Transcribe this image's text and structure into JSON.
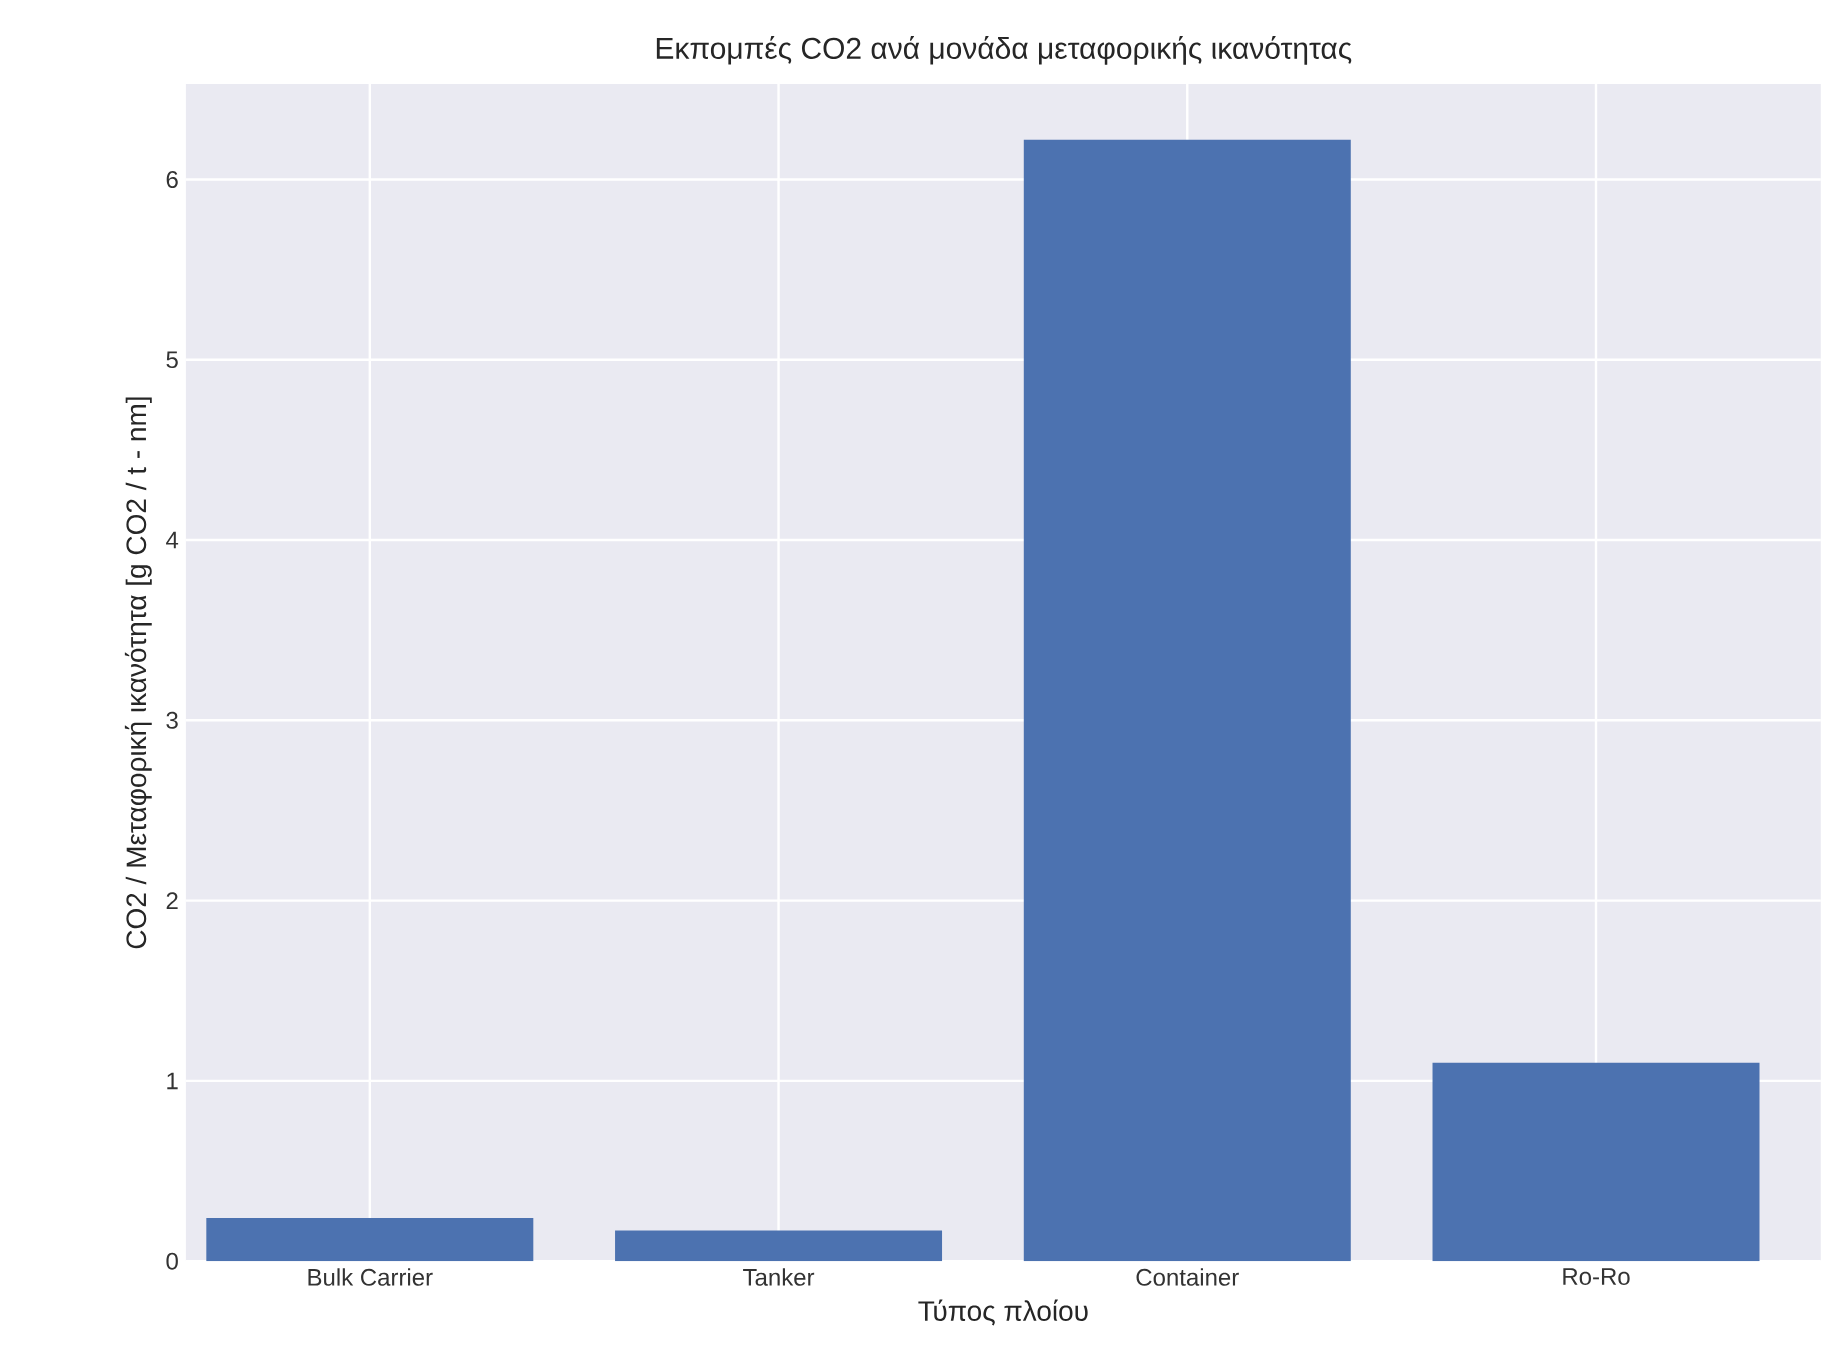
{
  "chart_data": {
    "type": "bar",
    "title": "Εκπομπές CO2 ανά μονάδα μεταφορικής ικανότητας",
    "xlabel": "Τύπος πλοίου",
    "ylabel": "CO2 / Μεταφορική ικανότητα [g CO2 / t - nm]",
    "categories": [
      "Bulk Carrier",
      "Tanker",
      "Container",
      "Ro-Ro"
    ],
    "values": [
      0.24,
      0.17,
      6.22,
      1.1
    ],
    "color": "#4c72b0",
    "ylim": [
      0,
      6.53
    ],
    "yticks": [
      0,
      1,
      2,
      3,
      4,
      5,
      6
    ],
    "grid": true
  }
}
